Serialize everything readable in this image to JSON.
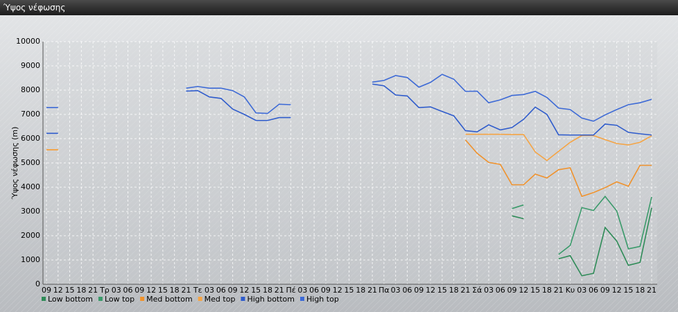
{
  "window": {
    "title": "Ύψος νέφωσης"
  },
  "chart_data": {
    "type": "line",
    "y_label": "Ύψος νέφωσης (m)",
    "categories": [
      "09",
      "12",
      "15",
      "18",
      "21",
      "Τρ",
      "03",
      "06",
      "09",
      "12",
      "15",
      "18",
      "21",
      "Τε",
      "03",
      "06",
      "09",
      "12",
      "15",
      "18",
      "21",
      "Πέ",
      "03",
      "06",
      "09",
      "12",
      "15",
      "18",
      "21",
      "Πα",
      "03",
      "06",
      "09",
      "12",
      "15",
      "18",
      "21",
      "Σά",
      "03",
      "06",
      "09",
      "12",
      "15",
      "18",
      "21",
      "Κυ",
      "03",
      "06",
      "09",
      "12",
      "15",
      "18",
      "21"
    ],
    "ylim": [
      0,
      10000
    ],
    "yticks": [
      0,
      1000,
      2000,
      3000,
      4000,
      5000,
      6000,
      7000,
      8000,
      9000,
      10000
    ],
    "grid": true,
    "series": [
      {
        "name": "Low bottom",
        "color": "#2e8b57",
        "values": [
          null,
          null,
          null,
          null,
          null,
          null,
          null,
          null,
          null,
          null,
          null,
          null,
          null,
          null,
          null,
          null,
          null,
          null,
          null,
          null,
          null,
          null,
          null,
          null,
          null,
          null,
          null,
          null,
          null,
          null,
          null,
          null,
          null,
          null,
          null,
          null,
          null,
          null,
          null,
          null,
          2820,
          2700,
          null,
          null,
          1050,
          1180,
          350,
          450,
          2340,
          1780,
          780,
          900,
          3150
        ]
      },
      {
        "name": "Low top",
        "color": "#3a9a6a",
        "values": [
          null,
          null,
          null,
          null,
          null,
          null,
          null,
          null,
          null,
          null,
          null,
          null,
          null,
          null,
          null,
          null,
          null,
          null,
          null,
          null,
          null,
          null,
          null,
          null,
          null,
          null,
          null,
          null,
          null,
          null,
          null,
          null,
          null,
          null,
          null,
          null,
          null,
          null,
          null,
          null,
          3120,
          3270,
          null,
          null,
          1230,
          1600,
          3160,
          3040,
          3620,
          3020,
          1460,
          1560,
          3600
        ]
      },
      {
        "name": "Med bottom",
        "color": "#f0922c",
        "values": [
          5540,
          5540,
          null,
          null,
          null,
          null,
          null,
          null,
          null,
          null,
          null,
          null,
          null,
          null,
          null,
          null,
          null,
          null,
          null,
          null,
          null,
          null,
          null,
          null,
          null,
          null,
          null,
          null,
          null,
          null,
          null,
          null,
          null,
          null,
          null,
          null,
          5950,
          5400,
          5020,
          4940,
          4100,
          4100,
          4540,
          4380,
          4720,
          4800,
          3620,
          3780,
          3980,
          4220,
          4040,
          4900,
          4900
        ]
      },
      {
        "name": "Med top",
        "color": "#f5a444",
        "values": [
          5540,
          5540,
          null,
          null,
          null,
          null,
          null,
          null,
          null,
          null,
          null,
          null,
          null,
          null,
          null,
          null,
          null,
          null,
          null,
          null,
          null,
          null,
          null,
          null,
          null,
          null,
          null,
          null,
          null,
          null,
          null,
          null,
          null,
          null,
          null,
          null,
          6180,
          6180,
          6180,
          6180,
          6170,
          6170,
          5450,
          5100,
          5480,
          5850,
          6130,
          6130,
          5960,
          5800,
          5740,
          5850,
          6120
        ]
      },
      {
        "name": "High bottom",
        "color": "#2f5ccc",
        "values": [
          6220,
          6220,
          null,
          null,
          null,
          null,
          null,
          null,
          null,
          null,
          null,
          null,
          7960,
          7980,
          7720,
          7660,
          7220,
          7000,
          6750,
          6750,
          6870,
          6870,
          null,
          null,
          null,
          null,
          null,
          null,
          8250,
          8180,
          7800,
          7760,
          7280,
          7310,
          7120,
          6940,
          6330,
          6280,
          6570,
          6360,
          6460,
          6800,
          7300,
          7000,
          6160,
          6150,
          6150,
          6150,
          6600,
          6550,
          6260,
          6200,
          6150
        ]
      },
      {
        "name": "High top",
        "color": "#3d6ad6",
        "values": [
          7280,
          7280,
          null,
          null,
          null,
          null,
          null,
          null,
          null,
          null,
          null,
          null,
          8080,
          8150,
          8080,
          8080,
          7980,
          7720,
          7060,
          7040,
          7420,
          7400,
          null,
          null,
          null,
          null,
          null,
          null,
          8330,
          8400,
          8600,
          8520,
          8120,
          8320,
          8650,
          8450,
          7950,
          7960,
          7480,
          7600,
          7780,
          7820,
          7950,
          7700,
          7260,
          7200,
          6850,
          6720,
          6980,
          7200,
          7400,
          7480,
          7620
        ]
      }
    ]
  }
}
